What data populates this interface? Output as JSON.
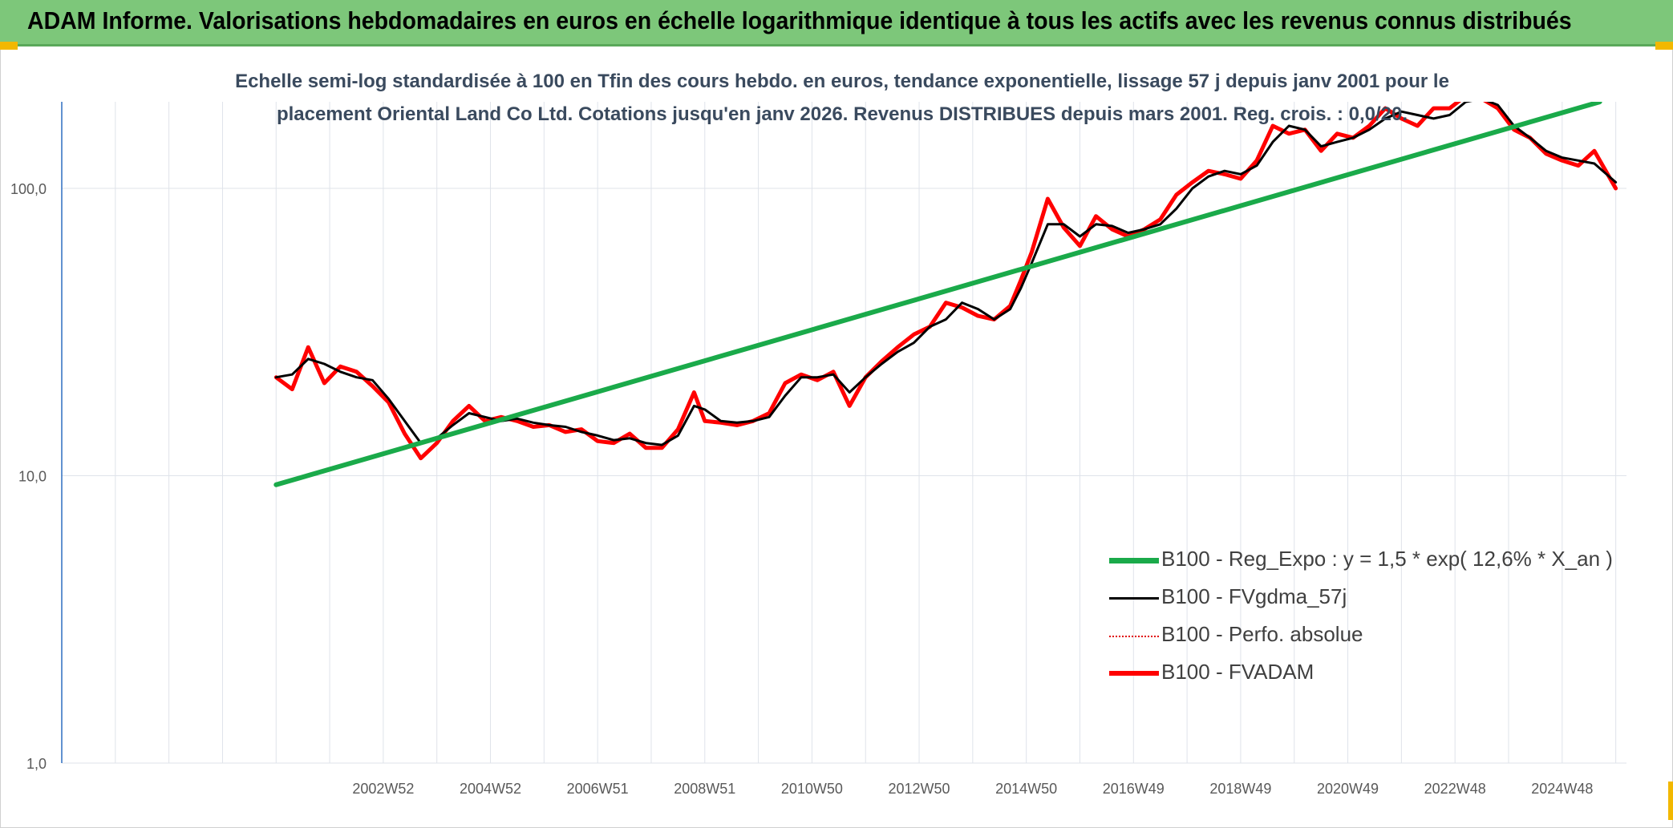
{
  "banner": {
    "title": "ADAM Informe. Valorisations hebdomadaires en euros en échelle logarithmique identique à tous les actifs avec les revenus connus distribués"
  },
  "colors": {
    "banner": "#7dc77a",
    "corner": "#f2b800",
    "regression": "#1aaa4a",
    "smoothed": "#000000",
    "absolute": "#e00000",
    "fvadam": "#ff0000"
  },
  "chart_data": {
    "type": "line",
    "title_lines": [
      "Echelle semi-log standardisée à 100 en Tfin des cours hebdo. en euros, tendance exponentielle, lissage 57 j depuis janv 2001 pour le",
      "placement Oriental Land Co Ltd. Cotations jusqu'en janv 2026. Revenus DISTRIBUES depuis mars 2001. Reg. crois. : 0,0/20."
    ],
    "y_scale": "log",
    "ylim": [
      1,
      200
    ],
    "y_ticks": [
      {
        "value": 1,
        "label": "1,0"
      },
      {
        "value": 10,
        "label": "10,0"
      },
      {
        "value": 100,
        "label": "100,0"
      }
    ],
    "xlim": [
      1997.0,
      2026.2
    ],
    "x_ticks": [
      {
        "value": 2003.0,
        "label": "2002W52"
      },
      {
        "value": 2005.0,
        "label": "2004W52"
      },
      {
        "value": 2007.0,
        "label": "2006W51"
      },
      {
        "value": 2009.0,
        "label": "2008W51"
      },
      {
        "value": 2011.0,
        "label": "2010W50"
      },
      {
        "value": 2013.0,
        "label": "2012W50"
      },
      {
        "value": 2015.0,
        "label": "2014W50"
      },
      {
        "value": 2017.0,
        "label": "2016W49"
      },
      {
        "value": 2019.0,
        "label": "2018W49"
      },
      {
        "value": 2021.0,
        "label": "2020W49"
      },
      {
        "value": 2023.0,
        "label": "2022W48"
      },
      {
        "value": 2025.0,
        "label": "2024W48"
      }
    ],
    "grid": true,
    "legend_position": "lower-right",
    "series": [
      {
        "name": "B100 - Reg_Expo : y = 1,5 * exp( 12,6% *  X_an )",
        "style": "thick-green",
        "x": [
          2001.0,
          2025.7
        ],
        "y": [
          9.3,
          200
        ]
      },
      {
        "name": "B100 - FVgdma_57j",
        "style": "thin-black",
        "x": [
          2001.0,
          2001.3,
          2001.6,
          2001.9,
          2002.2,
          2002.5,
          2002.8,
          2003.1,
          2003.4,
          2003.7,
          2004.0,
          2004.3,
          2004.6,
          2004.9,
          2005.2,
          2005.5,
          2005.8,
          2006.1,
          2006.4,
          2006.7,
          2007.0,
          2007.3,
          2007.6,
          2007.9,
          2008.2,
          2008.5,
          2008.8,
          2009.0,
          2009.3,
          2009.6,
          2009.9,
          2010.2,
          2010.5,
          2010.8,
          2011.1,
          2011.4,
          2011.7,
          2012.0,
          2012.3,
          2012.6,
          2012.9,
          2013.2,
          2013.5,
          2013.8,
          2014.1,
          2014.4,
          2014.7,
          2014.9,
          2015.1,
          2015.4,
          2015.7,
          2016.0,
          2016.3,
          2016.6,
          2016.9,
          2017.2,
          2017.5,
          2017.8,
          2018.1,
          2018.4,
          2018.7,
          2019.0,
          2019.3,
          2019.6,
          2019.9,
          2020.2,
          2020.5,
          2020.8,
          2021.1,
          2021.4,
          2021.7,
          2022.0,
          2022.3,
          2022.6,
          2022.9,
          2023.2,
          2023.5,
          2023.8,
          2024.1,
          2024.4,
          2024.7,
          2025.0,
          2025.3,
          2025.6,
          2026.0
        ],
        "y": [
          22,
          22.5,
          25.5,
          24.5,
          23,
          22,
          21.5,
          18.5,
          15.5,
          13,
          13.5,
          15,
          16.5,
          16,
          15.5,
          15.8,
          15.3,
          15,
          14.8,
          14.2,
          13.8,
          13.3,
          13.5,
          13,
          12.8,
          13.8,
          17.5,
          17,
          15.5,
          15.3,
          15.5,
          16,
          19,
          22,
          22,
          22.5,
          19.5,
          22,
          24.5,
          27,
          29,
          33,
          35,
          40,
          38,
          35,
          38,
          45,
          55,
          75,
          75,
          68,
          75,
          74,
          70,
          72,
          75,
          85,
          100,
          110,
          115,
          112,
          120,
          145,
          165,
          160,
          140,
          145,
          150,
          160,
          175,
          185,
          180,
          175,
          180,
          200,
          205,
          195,
          165,
          150,
          135,
          128,
          125,
          122,
          105
        ]
      },
      {
        "name": "B100 - Perfo. absolue",
        "style": "dotted-red",
        "x": [],
        "y": []
      },
      {
        "name": "B100 - FVADAM",
        "style": "thick-red",
        "x": [
          2001.0,
          2001.3,
          2001.6,
          2001.9,
          2002.2,
          2002.5,
          2002.8,
          2003.1,
          2003.4,
          2003.7,
          2004.0,
          2004.3,
          2004.6,
          2004.9,
          2005.2,
          2005.5,
          2005.8,
          2006.1,
          2006.4,
          2006.7,
          2007.0,
          2007.3,
          2007.6,
          2007.9,
          2008.2,
          2008.5,
          2008.8,
          2009.0,
          2009.3,
          2009.6,
          2009.9,
          2010.2,
          2010.5,
          2010.8,
          2011.1,
          2011.4,
          2011.7,
          2012.0,
          2012.3,
          2012.6,
          2012.9,
          2013.2,
          2013.5,
          2013.8,
          2014.1,
          2014.4,
          2014.7,
          2014.9,
          2015.1,
          2015.4,
          2015.7,
          2016.0,
          2016.3,
          2016.6,
          2016.9,
          2017.2,
          2017.5,
          2017.8,
          2018.1,
          2018.4,
          2018.7,
          2019.0,
          2019.3,
          2019.6,
          2019.9,
          2020.2,
          2020.5,
          2020.8,
          2021.1,
          2021.4,
          2021.7,
          2022.0,
          2022.3,
          2022.6,
          2022.9,
          2023.2,
          2023.5,
          2023.8,
          2024.1,
          2024.4,
          2024.7,
          2025.0,
          2025.3,
          2025.6,
          2026.0
        ],
        "y": [
          22,
          20,
          28,
          21,
          24,
          23,
          20.5,
          18,
          14,
          11.5,
          13,
          15.5,
          17.5,
          15.5,
          16,
          15.5,
          14.8,
          15,
          14.2,
          14.5,
          13.2,
          13,
          14,
          12.5,
          12.5,
          14.5,
          19.5,
          15.5,
          15.3,
          15,
          15.5,
          16.5,
          21,
          22.5,
          21.5,
          23,
          17.5,
          22,
          25,
          28,
          31,
          33,
          40,
          38.5,
          36,
          35,
          39,
          48,
          60,
          92,
          73,
          63,
          80,
          72,
          68,
          72,
          78,
          95,
          105,
          115,
          112,
          108,
          125,
          165,
          155,
          160,
          135,
          155,
          150,
          165,
          190,
          175,
          165,
          190,
          190,
          210,
          205,
          190,
          160,
          150,
          132,
          125,
          120,
          135,
          100
        ]
      }
    ]
  }
}
